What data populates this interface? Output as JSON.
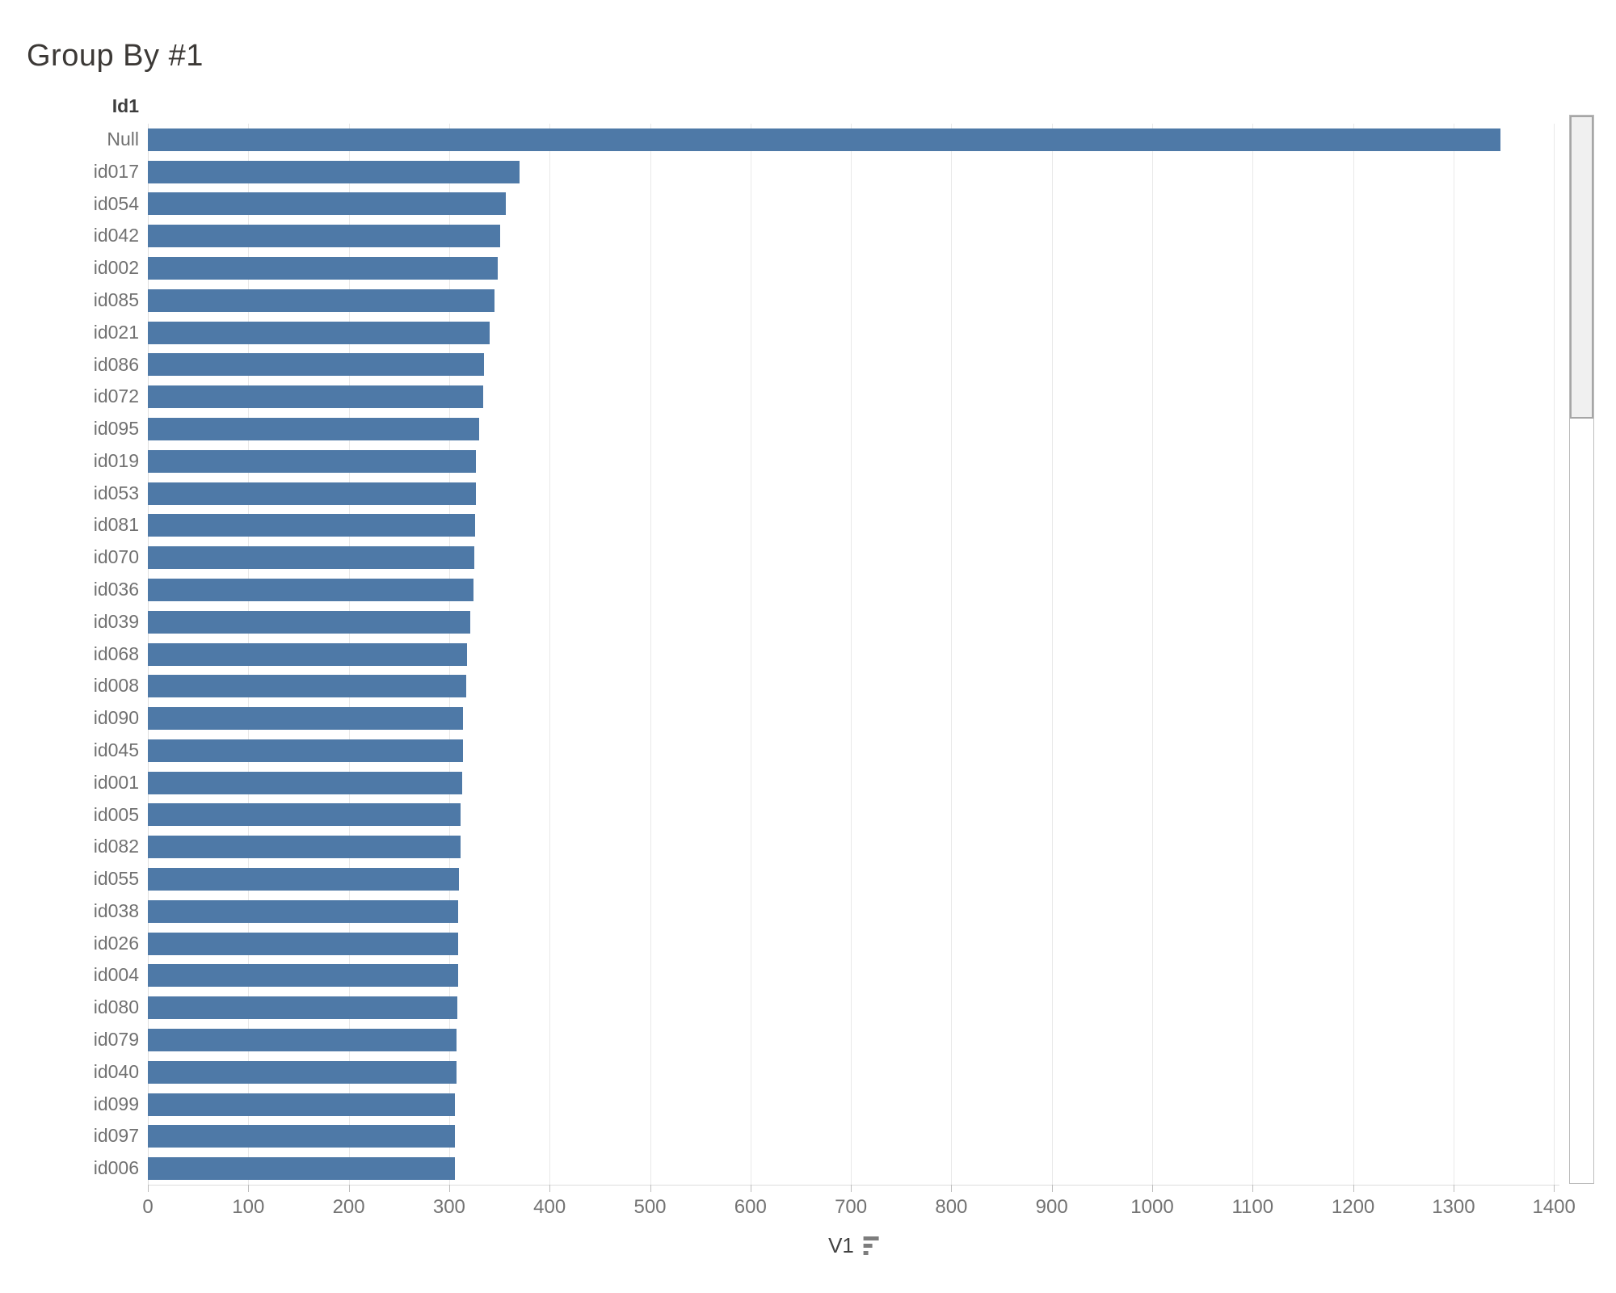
{
  "title": "Group By #1",
  "column_header": "Id1",
  "axis": {
    "label": "V1",
    "sort_icon": "sort-descending-icon",
    "ticks": [
      0,
      100,
      200,
      300,
      400,
      500,
      600,
      700,
      800,
      900,
      1000,
      1100,
      1200,
      1300,
      1400
    ],
    "range": [
      0,
      1400
    ]
  },
  "colors": {
    "bar": "#4e79a7",
    "gridline": "#e9e9e9",
    "title_text": "#3c3936",
    "label_text": "#717171"
  },
  "chart_data": {
    "type": "bar",
    "orientation": "horizontal",
    "title": "Group By #1",
    "xlabel": "V1",
    "ylabel": "Id1",
    "xlim": [
      0,
      1400
    ],
    "grid": true,
    "legend": false,
    "sort": "descending",
    "bar_color": "#4e79a7",
    "categories": [
      "Null",
      "id017",
      "id054",
      "id042",
      "id002",
      "id085",
      "id021",
      "id086",
      "id072",
      "id095",
      "id019",
      "id053",
      "id081",
      "id070",
      "id036",
      "id039",
      "id068",
      "id008",
      "id090",
      "id045",
      "id001",
      "id005",
      "id082",
      "id055",
      "id038",
      "id026",
      "id004",
      "id080",
      "id079",
      "id040",
      "id099",
      "id097",
      "id006"
    ],
    "values": [
      1347,
      370,
      356,
      351,
      348,
      345,
      340,
      335,
      334,
      330,
      327,
      327,
      326,
      325,
      324,
      321,
      318,
      317,
      314,
      314,
      313,
      311,
      311,
      310,
      309,
      309,
      309,
      308,
      307,
      307,
      306,
      306,
      306
    ]
  }
}
